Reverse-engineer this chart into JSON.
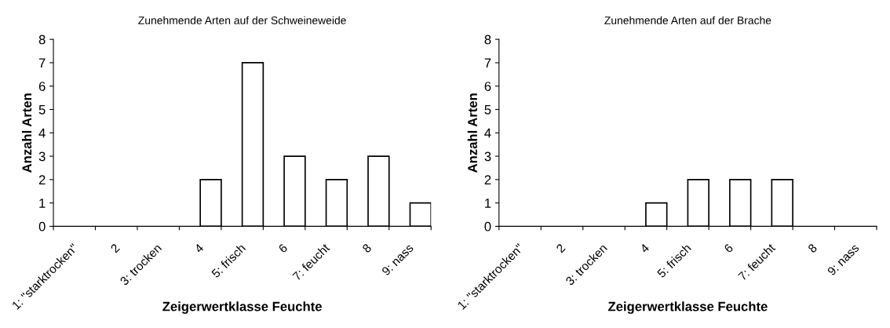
{
  "chart_data": [
    {
      "type": "bar",
      "title": "Zunehmende Arten auf der Schweineweide",
      "xlabel": "Zeigerwertklasse Feuchte",
      "ylabel": "Anzahl Arten",
      "categories": [
        "1: \"starktrocken\"",
        "2",
        "3: trocken",
        "4",
        "5: frisch",
        "6",
        "7: feucht",
        "8",
        "9: nass"
      ],
      "values": [
        0,
        0,
        0,
        2,
        7,
        3,
        2,
        3,
        1
      ],
      "color": "#ffffff",
      "ylim": [
        0,
        8
      ],
      "yticks": [
        0,
        1,
        2,
        3,
        4,
        5,
        6,
        7,
        8
      ],
      "grid": false,
      "legend": false
    },
    {
      "type": "bar",
      "title": "Zunehmende Arten auf der Brache",
      "xlabel": "Zeigerwertklasse Feuchte",
      "ylabel": "Anzahl Arten",
      "categories": [
        "1: \"starktrocken\"",
        "2",
        "3: trocken",
        "4",
        "5: frisch",
        "6",
        "7: feucht",
        "8",
        "9: nass"
      ],
      "values": [
        0,
        0,
        0,
        1,
        2,
        2,
        2,
        0,
        0
      ],
      "color": "#ffffff",
      "ylim": [
        0,
        8
      ],
      "yticks": [
        0,
        1,
        2,
        3,
        4,
        5,
        6,
        7,
        8
      ],
      "grid": false,
      "legend": false
    }
  ]
}
